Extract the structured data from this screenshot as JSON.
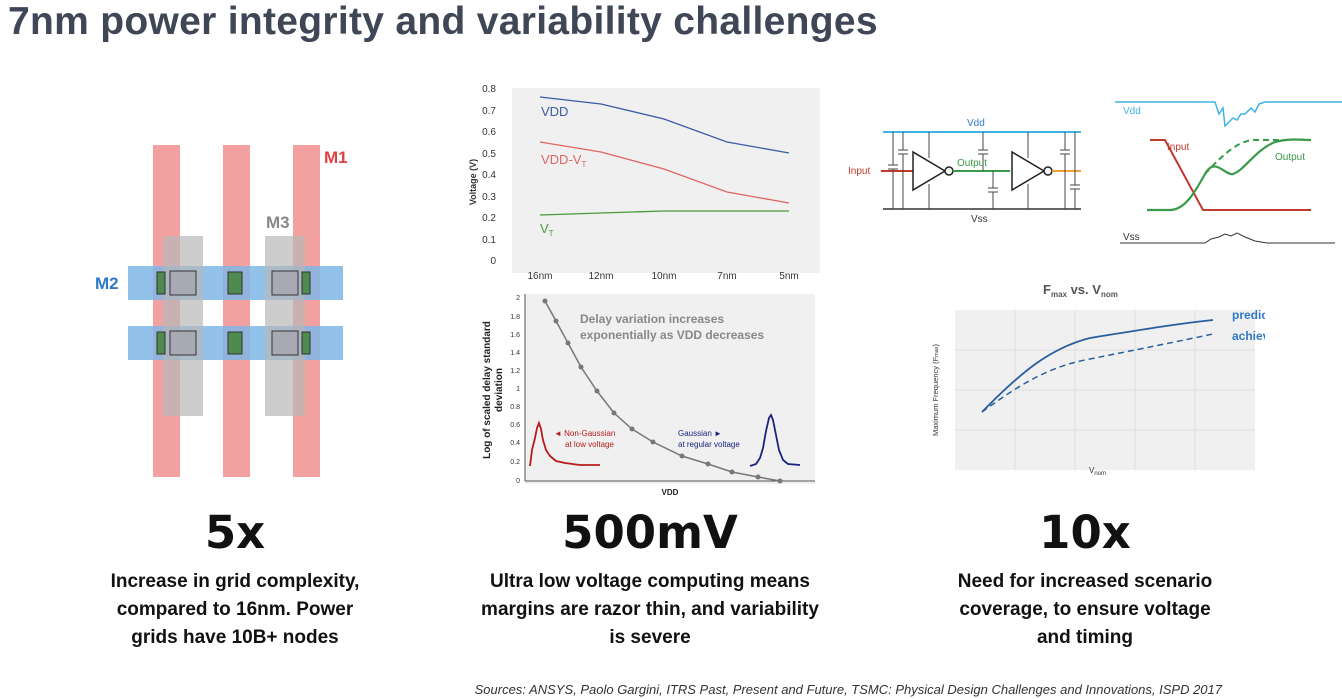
{
  "title": "7nm power integrity and variability challenges",
  "grid_diagram": {
    "m1": "M1",
    "m2": "M2",
    "m3": "M3"
  },
  "voltage_chart": {
    "ylabel": "Voltage (V)",
    "categories": [
      "16nm",
      "12nm",
      "10nm",
      "7nm",
      "5nm"
    ],
    "yticks": [
      "0.8",
      "0.7",
      "0.6",
      "0.5",
      "0.4",
      "0.3",
      "0.2",
      "0.1",
      "0"
    ],
    "labels": {
      "vdd": "VDD",
      "vdd_vt": "VDD-V",
      "vt": "V",
      "sub_t": "T"
    }
  },
  "delay_chart": {
    "ylabel_line1": "Log of scaled delay standard",
    "ylabel_line2": "deviation",
    "xlabel": "VDD",
    "yticks": [
      "2",
      "1.8",
      "1.6",
      "1.4",
      "1.2",
      "1",
      "0.8",
      "0.6",
      "0.4",
      "0.2",
      "0"
    ],
    "note_line1": "Delay variation increases",
    "note_line2": "exponentially as VDD decreases",
    "non_gaussian_line1": "◄ Non-Gaussian",
    "non_gaussian_line2": "at low voltage",
    "gaussian_line1": "Gaussian ►",
    "gaussian_line2": "at regular voltage"
  },
  "inverter_diagram": {
    "vdd": "Vdd",
    "vss": "Vss",
    "input": "Input",
    "output": "Output"
  },
  "waveform": {
    "vdd": "Vdd",
    "input": "Input",
    "output": "Output",
    "vss": "Vss"
  },
  "fmax_chart": {
    "title_f": "F",
    "title_max": "max",
    "title_vs": " vs. V",
    "title_nom": "nom",
    "ylabel_a": "Maximum Frequency (F",
    "ylabel_b": "max",
    "ylabel_c": ")",
    "xlabel_a": "V",
    "xlabel_b": "nom",
    "predicted": "predicted",
    "achieved": "achieved"
  },
  "stats": [
    {
      "value": "5x",
      "line1": "Increase in grid complexity,",
      "line2": "compared to 16nm.  Power",
      "line3": "grids have 10B+ nodes"
    },
    {
      "value": "500mV",
      "line1": "Ultra low voltage computing means",
      "line2": "margins are razor thin, and variability",
      "line3": "is severe"
    },
    {
      "value": "10x",
      "line1": "Need for increased scenario",
      "line2": "coverage, to ensure voltage",
      "line3": "and timing"
    }
  ],
  "sources": "Sources:  ANSYS, Paolo Gargini, ITRS Past, Present and Future, TSMC: Physical Design Challenges and Innovations, ISPD 2017",
  "colors": {
    "vdd_line": "#3b5ba5",
    "vdd_vt_line": "#e06666",
    "vt_line": "#4a9a3a",
    "fmax_line": "#2a5f9e",
    "accent_blue": "#2e78c7"
  }
}
